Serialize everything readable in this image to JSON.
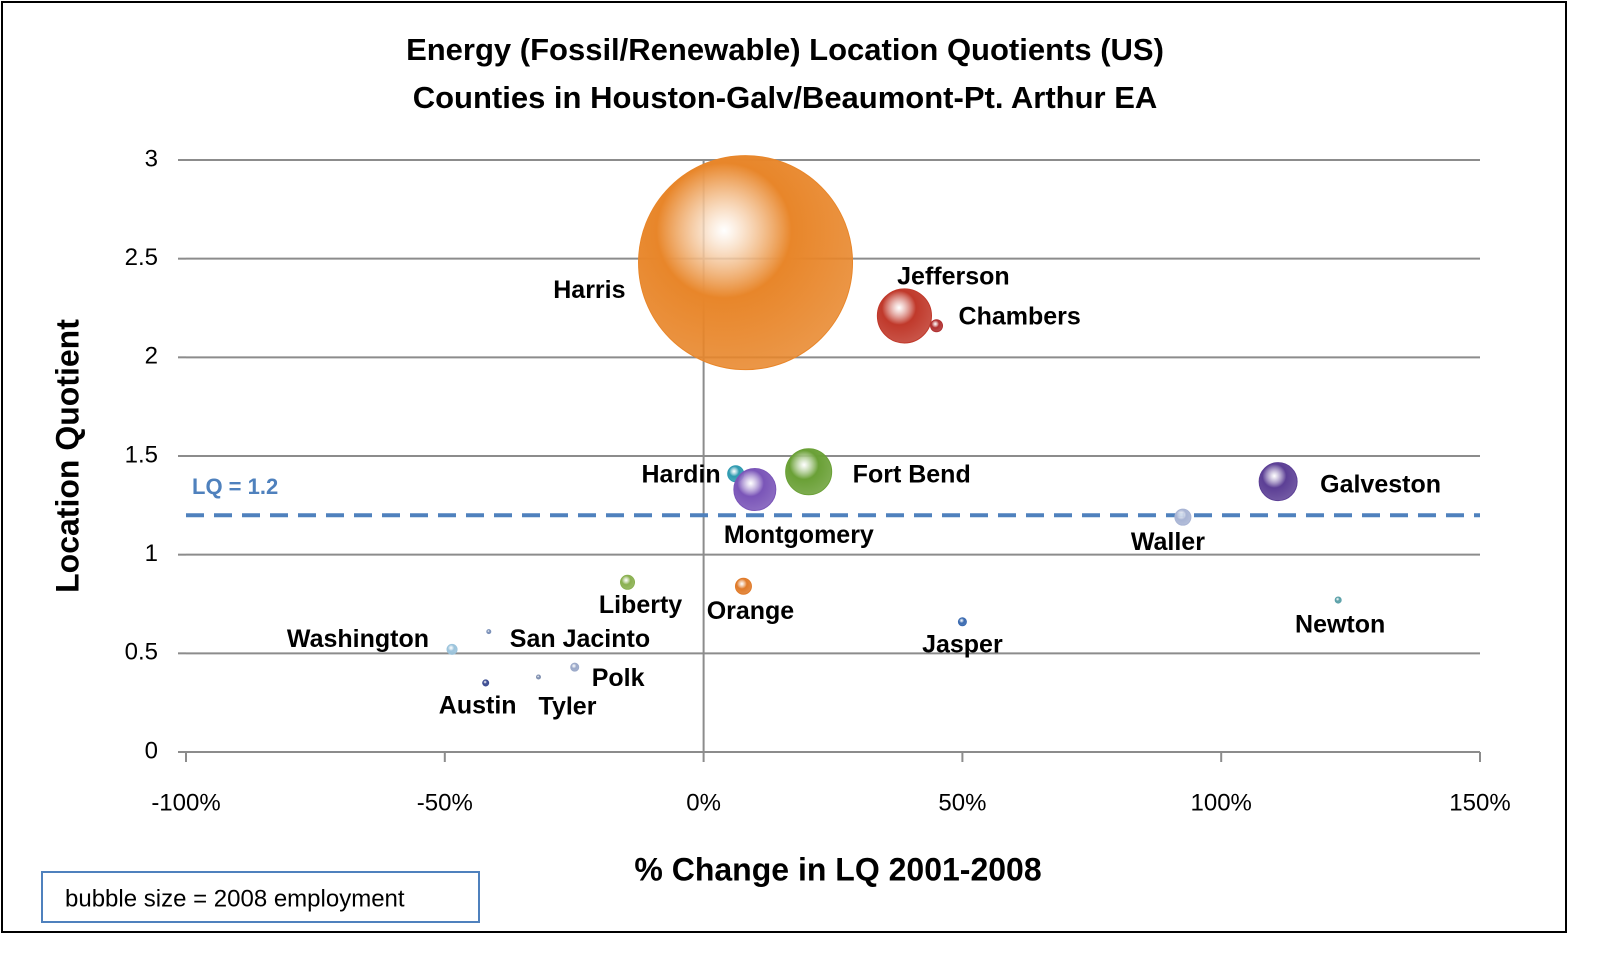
{
  "chart_data": {
    "type": "bubble",
    "title": [
      "Energy (Fossil/Renewable) Location Quotients (US)",
      "Counties in Houston-Galv/Beaumont-Pt. Arthur EA"
    ],
    "x_label": "% Change in LQ 2001-2008",
    "y_label": "Location Quotient",
    "note": "bubble size = 2008 employment",
    "xlim": [
      -100,
      150
    ],
    "xticks": [
      {
        "value": -100,
        "label": "-100%"
      },
      {
        "value": -50,
        "label": "-50%"
      },
      {
        "value": 0,
        "label": "0%"
      },
      {
        "value": 50,
        "label": "50%"
      },
      {
        "value": 100,
        "label": "100%"
      },
      {
        "value": 150,
        "label": "150%"
      }
    ],
    "ylim": [
      0,
      3
    ],
    "yticks": [
      0,
      0.5,
      1,
      1.5,
      2,
      2.5,
      3
    ],
    "grid": true,
    "reference_line": {
      "value": 1.2,
      "label": "LQ = 1.2",
      "color": "#4f81bd"
    },
    "series": [
      {
        "name": "Harris",
        "color": "#e8862a",
        "x": [
          8.1
        ],
        "values": [
          2.48
        ],
        "sizes": [
          100000
        ]
      },
      {
        "name": "Jefferson",
        "color": "#c0392b",
        "x": [
          38.8
        ],
        "values": [
          2.21
        ],
        "sizes": [
          6400
        ]
      },
      {
        "name": "Chambers",
        "color": "#b03030",
        "x": [
          45
        ],
        "values": [
          2.16
        ],
        "sizes": [
          314
        ]
      },
      {
        "name": "Hardin",
        "color": "#2e9ab0",
        "x": [
          6.2
        ],
        "values": [
          1.41
        ],
        "sizes": [
          560
        ]
      },
      {
        "name": "Montgomery",
        "color": "#7a55b8",
        "x": [
          9.9
        ],
        "values": [
          1.33
        ],
        "sizes": [
          3850
        ]
      },
      {
        "name": "Fort Bend",
        "color": "#6aa036",
        "x": [
          20.3
        ],
        "values": [
          1.42
        ],
        "sizes": [
          4620
        ]
      },
      {
        "name": "Galveston",
        "color": "#5c3f95",
        "x": [
          111
        ],
        "values": [
          1.37
        ],
        "sizes": [
          3150
        ]
      },
      {
        "name": "Waller",
        "color": "#a8b4d4",
        "x": [
          92.6
        ],
        "values": [
          1.19
        ],
        "sizes": [
          560
        ]
      },
      {
        "name": "Liberty",
        "color": "#8ab050",
        "x": [
          -14.7
        ],
        "values": [
          0.86
        ],
        "sizes": [
          430
        ]
      },
      {
        "name": "Orange",
        "color": "#e07b2a",
        "x": [
          7.7
        ],
        "values": [
          0.84
        ],
        "sizes": [
          560
        ]
      },
      {
        "name": "Jasper",
        "color": "#3a6ab0",
        "x": [
          50
        ],
        "values": [
          0.66
        ],
        "sizes": [
          140
        ]
      },
      {
        "name": "Newton",
        "color": "#5aa0a8",
        "x": [
          122.6
        ],
        "values": [
          0.77
        ],
        "sizes": [
          80
        ]
      },
      {
        "name": "Washington",
        "color": "#9cc4dc",
        "x": [
          -48.6
        ],
        "values": [
          0.52
        ],
        "sizes": [
          220
        ]
      },
      {
        "name": "San Jacinto",
        "color": "#7a90b8",
        "x": [
          -41.5
        ],
        "values": [
          0.61
        ],
        "sizes": [
          35
        ]
      },
      {
        "name": "Polk",
        "color": "#9aa8c8",
        "x": [
          -24.9
        ],
        "values": [
          0.43
        ],
        "sizes": [
          140
        ]
      },
      {
        "name": "Austin",
        "color": "#3a4a90",
        "x": [
          -42.1
        ],
        "values": [
          0.35
        ],
        "sizes": [
          80
        ]
      },
      {
        "name": "Tyler",
        "color": "#8090b0",
        "x": [
          -31.9
        ],
        "values": [
          0.38
        ],
        "sizes": [
          35
        ]
      }
    ]
  }
}
